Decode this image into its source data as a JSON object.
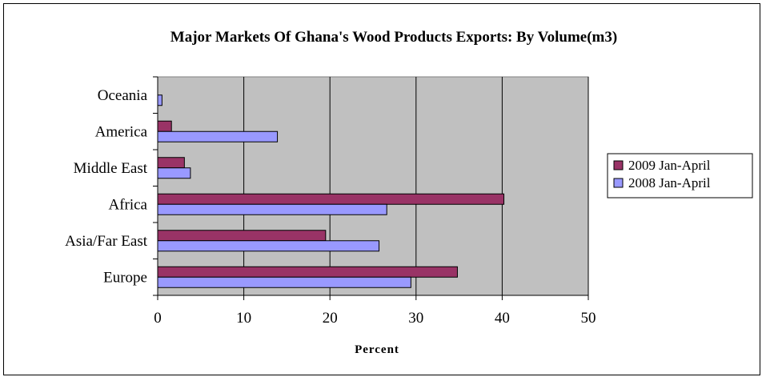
{
  "chart_data": {
    "type": "bar",
    "orientation": "horizontal",
    "title": "Major Markets Of Ghana's Wood Products Exports: By Volume(m3)",
    "xlabel": "Percent",
    "ylabel": "",
    "categories": [
      "Oceania",
      "America",
      "Middle East",
      "Africa",
      "Asia/Far East",
      "Europe"
    ],
    "series": [
      {
        "name": "2009 Jan-April",
        "color": "#993366",
        "values": [
          0,
          1.6,
          3.1,
          40.2,
          19.5,
          34.8
        ]
      },
      {
        "name": "2008 Jan-April",
        "color": "#9999ff",
        "values": [
          0.5,
          13.9,
          3.8,
          26.6,
          25.7,
          29.4
        ]
      }
    ],
    "xlim": [
      0,
      50
    ],
    "xticks": [
      "0",
      "10",
      "20",
      "30",
      "40",
      "50"
    ],
    "plot_background": "#c0c0c0",
    "grid": "vertical major gridlines",
    "legend_position": "right"
  }
}
